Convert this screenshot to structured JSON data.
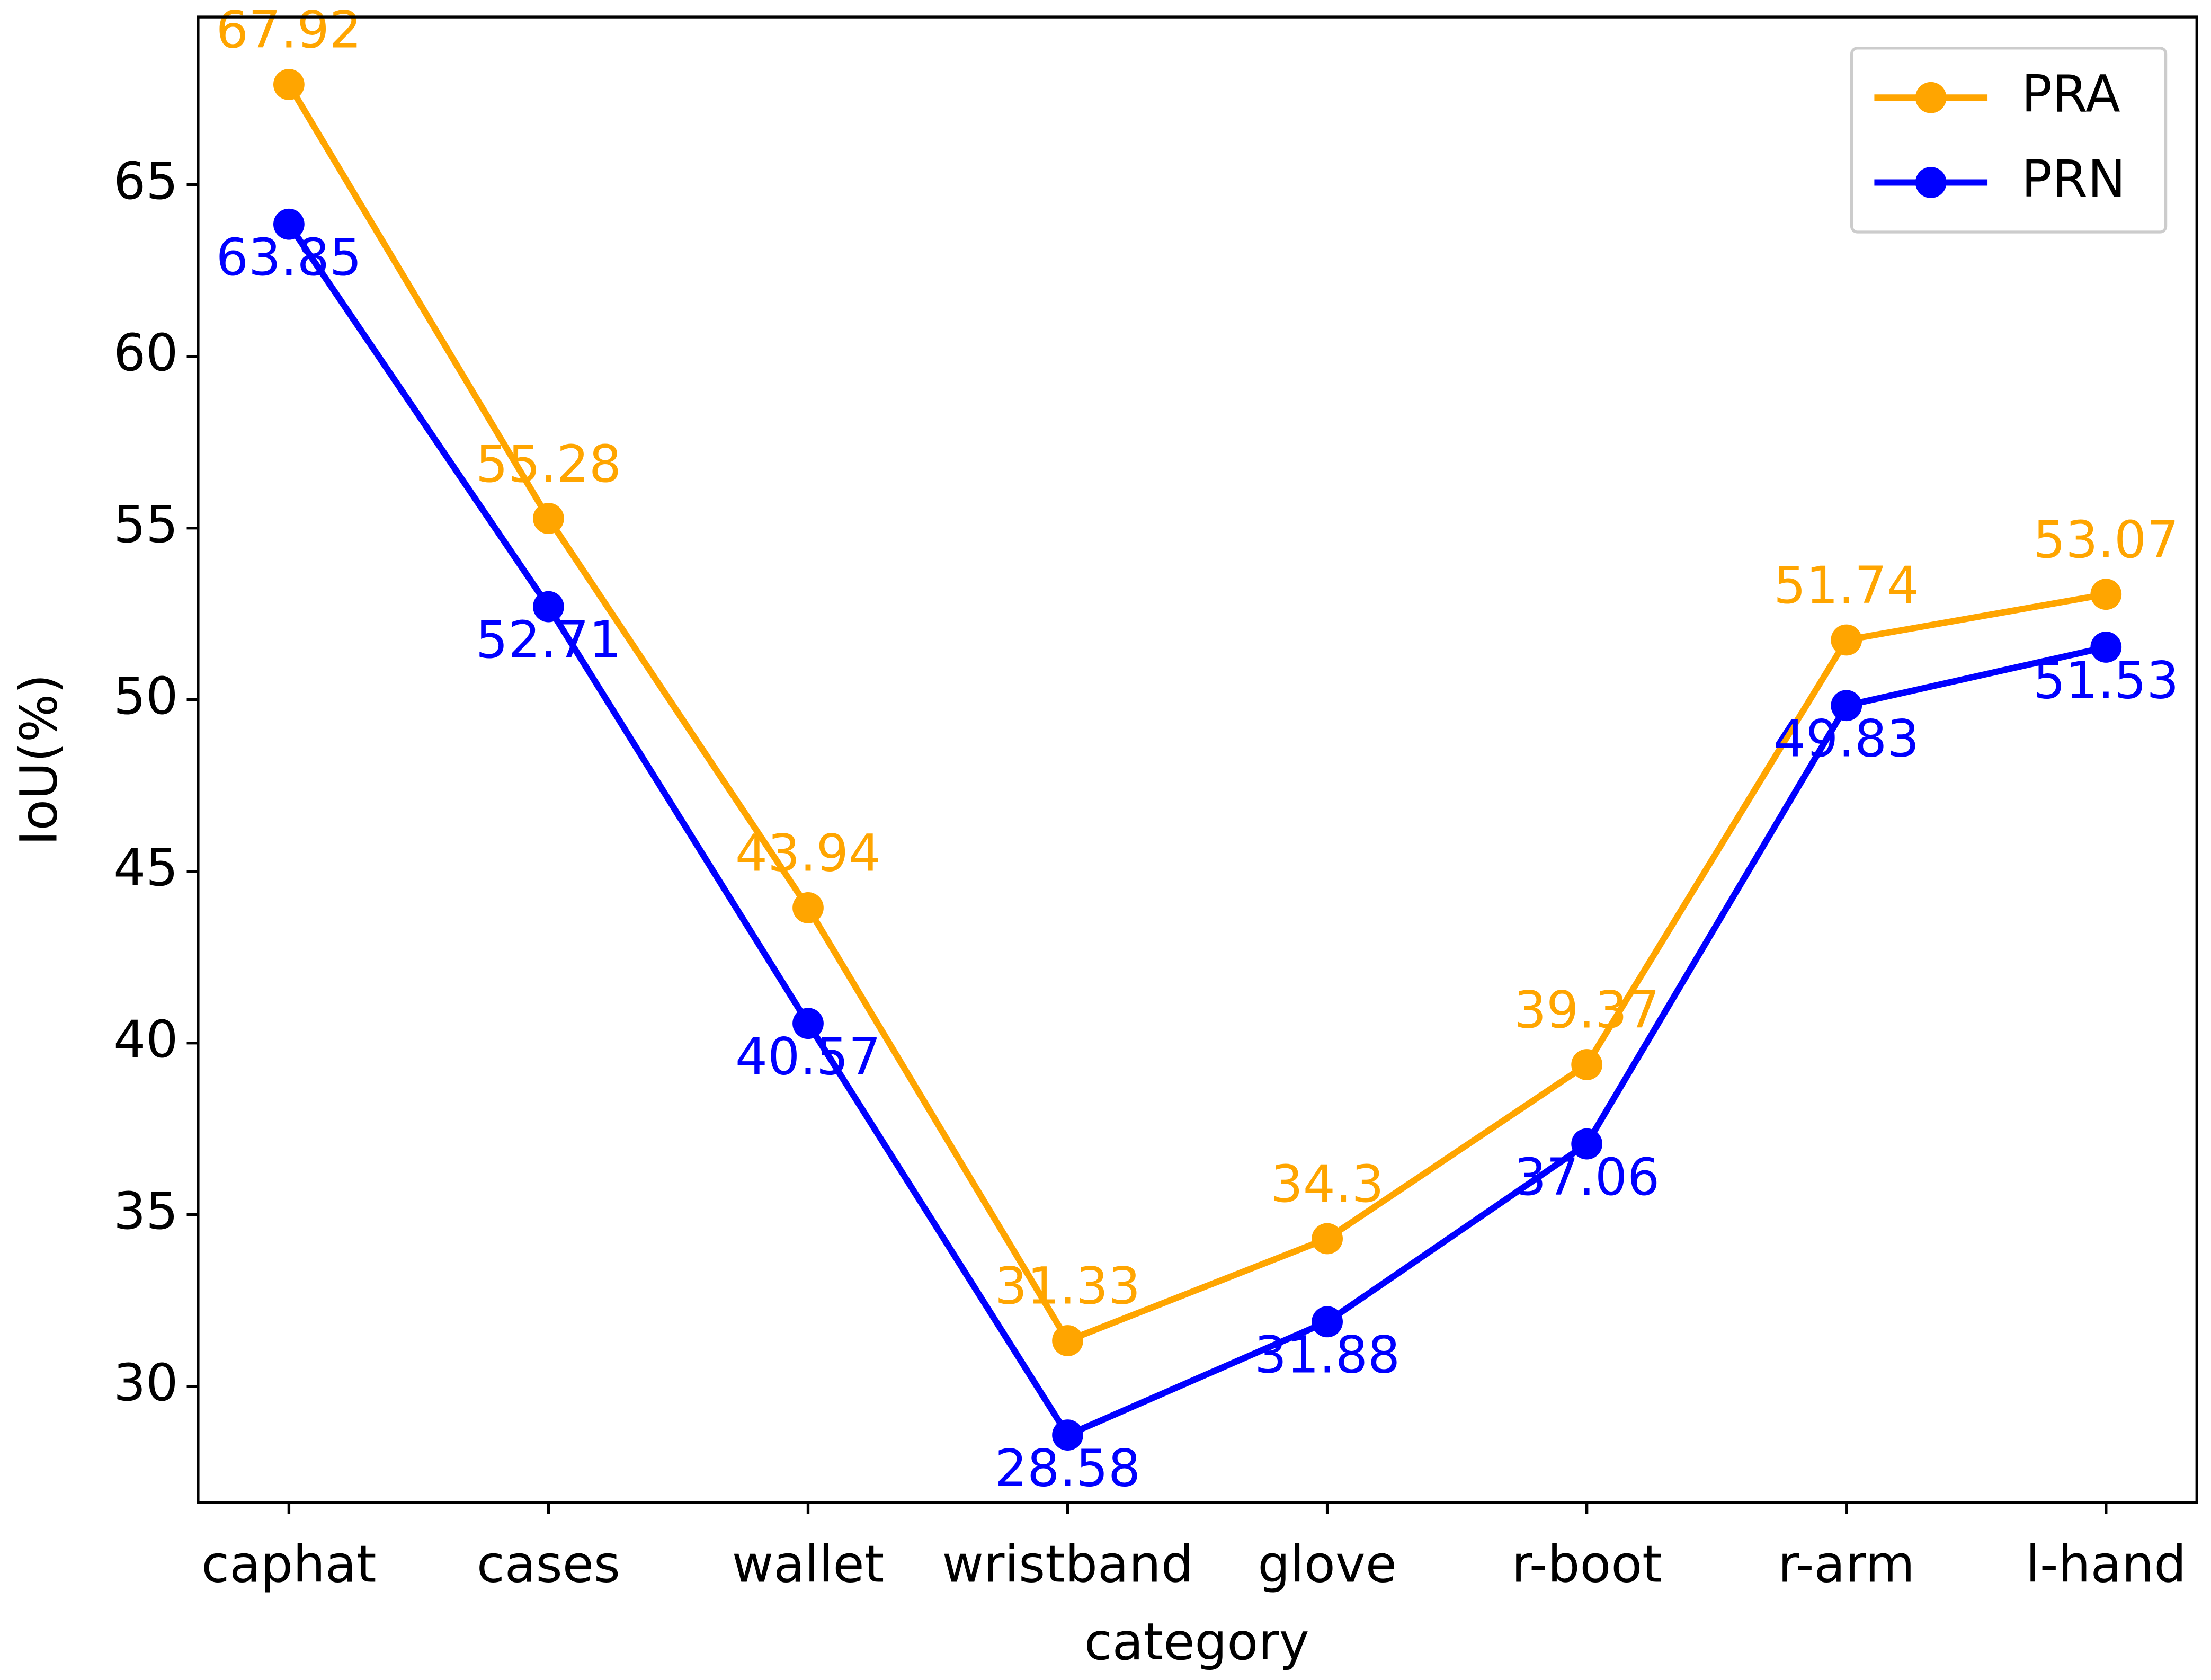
{
  "chart_data": {
    "type": "line",
    "x_label": "category",
    "y_label": "IoU(%)",
    "categories": [
      "caphat",
      "cases",
      "wallet",
      "wristband",
      "glove",
      "r-boot",
      "r-arm",
      "l-hand"
    ],
    "series": [
      {
        "name": "PRA",
        "color": "#ffa500",
        "values": [
          67.92,
          55.28,
          43.94,
          31.33,
          34.3,
          39.37,
          51.74,
          53.07
        ]
      },
      {
        "name": "PRN",
        "color": "#0000ff",
        "values": [
          63.85,
          52.71,
          40.57,
          28.58,
          31.88,
          37.06,
          49.83,
          51.53
        ]
      }
    ],
    "ylim": [
      26.613,
      69.887
    ],
    "yticks": [
      30,
      35,
      40,
      45,
      50,
      55,
      60,
      65
    ],
    "legend": "upper right",
    "grid": false
  }
}
